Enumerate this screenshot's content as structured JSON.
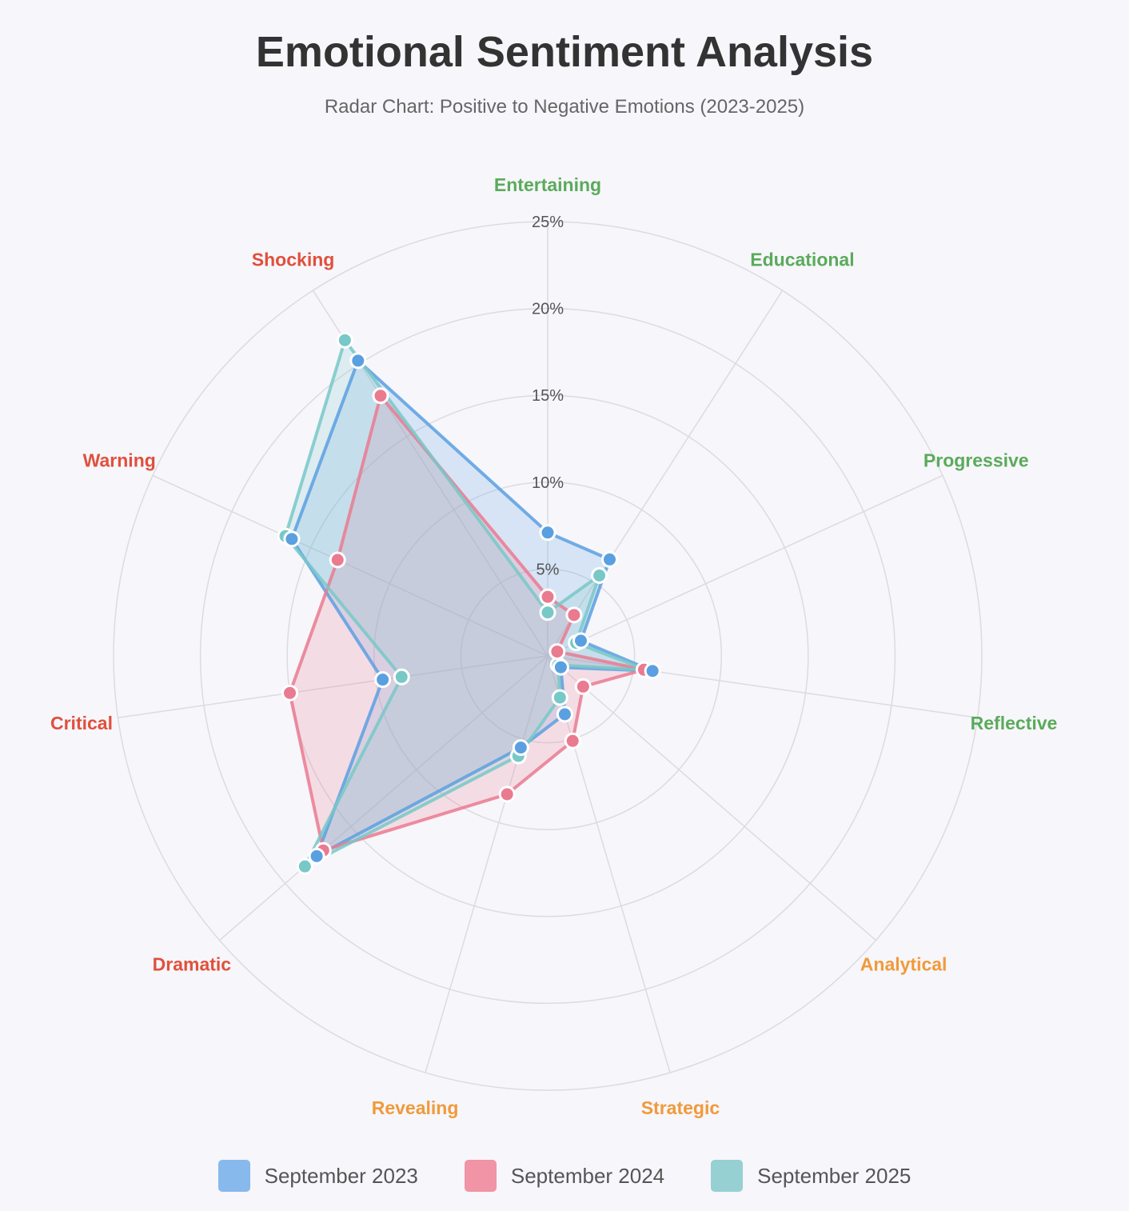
{
  "chart_data": {
    "type": "radar",
    "title": "Emotional Sentiment Analysis",
    "subtitle": "Radar Chart: Positive to Negative Emotions (2023-2025)",
    "axes": [
      {
        "label": "Entertaining",
        "group": "positive"
      },
      {
        "label": "Educational",
        "group": "positive"
      },
      {
        "label": "Progressive",
        "group": "positive"
      },
      {
        "label": "Reflective",
        "group": "positive"
      },
      {
        "label": "Analytical",
        "group": "neutral"
      },
      {
        "label": "Strategic",
        "group": "neutral"
      },
      {
        "label": "Revealing",
        "group": "neutral"
      },
      {
        "label": "Dramatic",
        "group": "negative"
      },
      {
        "label": "Critical",
        "group": "negative"
      },
      {
        "label": "Warning",
        "group": "negative"
      },
      {
        "label": "Shocking",
        "group": "negative"
      }
    ],
    "group_colors": {
      "positive": "#5aab5a",
      "neutral": "#f09a3a",
      "negative": "#e0503c"
    },
    "r_range": [
      0,
      25
    ],
    "r_ticks": [
      {
        "value": 5,
        "label": "5%"
      },
      {
        "value": 10,
        "label": "10%"
      },
      {
        "value": 15,
        "label": "15%"
      },
      {
        "value": 20,
        "label": "20%"
      },
      {
        "value": 25,
        "label": "25%"
      }
    ],
    "grid": true,
    "legend_position": "bottom",
    "series": [
      {
        "name": "September 2023",
        "color": "#5aa0e0",
        "swatch": "#88b9ec",
        "values": [
          7.1,
          6.6,
          2.1,
          6.1,
          1.0,
          3.5,
          5.5,
          17.6,
          9.6,
          16.2,
          20.2
        ]
      },
      {
        "name": "September 2024",
        "color": "#ea7a90",
        "swatch": "#f094a6",
        "values": [
          3.4,
          2.8,
          0.6,
          5.6,
          2.7,
          5.1,
          8.3,
          17.1,
          15.0,
          13.3,
          17.8
        ]
      },
      {
        "name": "September 2025",
        "color": "#78c8c8",
        "swatch": "#96d0d2",
        "values": [
          2.5,
          5.5,
          1.8,
          5.8,
          0.8,
          2.5,
          6.0,
          18.5,
          8.5,
          16.6,
          21.6
        ]
      }
    ]
  }
}
